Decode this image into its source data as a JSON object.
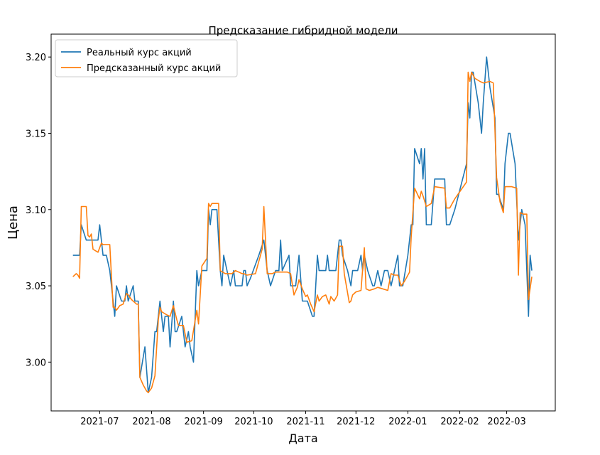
{
  "chart_data": {
    "type": "line",
    "title": "Предсказание гибридной модели",
    "x_label": "Дата",
    "y_label": "Цена",
    "xlim": [
      -29,
      272
    ],
    "ylim": [
      2.968,
      3.215
    ],
    "xticks": [
      {
        "value": 0,
        "label": "2021-07"
      },
      {
        "value": 31,
        "label": "2021-08"
      },
      {
        "value": 62,
        "label": "2021-09"
      },
      {
        "value": 92,
        "label": "2021-10"
      },
      {
        "value": 123,
        "label": "2021-11"
      },
      {
        "value": 153,
        "label": "2021-12"
      },
      {
        "value": 184,
        "label": "2022-01"
      },
      {
        "value": 215,
        "label": "2022-02"
      },
      {
        "value": 243,
        "label": "2022-03"
      }
    ],
    "yticks": [
      {
        "value": 3.0,
        "label": "3.00"
      },
      3.05,
      {
        "value": 3.1,
        "label": "3.10"
      },
      3.15,
      {
        "value": 3.2,
        "label": "3.20"
      }
    ],
    "legend": "upper left",
    "series": [
      {
        "name": "Реальный курс акций",
        "color": "#1f77b4",
        "x": [
          -16,
          -12,
          -11,
          -8,
          -5,
          -1,
          0,
          2,
          4,
          6,
          8,
          9,
          10,
          13,
          15,
          16,
          17,
          20,
          21,
          23,
          24,
          27,
          29,
          31,
          33,
          34,
          36,
          38,
          39,
          41,
          42,
          44,
          45,
          46,
          49,
          50,
          51,
          53,
          54,
          56,
          58,
          59,
          61,
          64,
          65,
          66,
          67,
          70,
          72,
          73,
          74,
          76,
          78,
          80,
          81,
          85,
          86,
          87,
          88,
          90,
          95,
          98,
          100,
          102,
          105,
          107,
          108,
          109,
          113,
          114,
          117,
          119,
          121,
          124,
          127,
          128,
          130,
          131,
          135,
          136,
          137,
          141,
          143,
          144,
          145,
          148,
          150,
          151,
          154,
          156,
          157,
          158,
          160,
          163,
          164,
          166,
          168,
          170,
          172,
          174,
          176,
          178,
          179,
          181,
          184,
          186,
          187,
          188,
          191,
          192,
          193,
          194,
          195,
          198,
          200,
          206,
          207,
          209,
          212,
          219,
          220,
          221,
          222,
          223,
          226,
          228,
          229,
          231,
          233,
          236,
          237,
          238,
          241,
          242,
          244,
          245,
          248,
          250,
          252,
          254,
          256,
          257,
          258
        ],
        "values": [
          3.07,
          3.07,
          3.09,
          3.08,
          3.08,
          3.08,
          3.09,
          3.07,
          3.07,
          3.06,
          3.04,
          3.03,
          3.05,
          3.04,
          3.04,
          3.05,
          3.04,
          3.05,
          3.04,
          3.04,
          2.99,
          3.01,
          2.98,
          2.99,
          3.02,
          3.02,
          3.04,
          3.02,
          3.03,
          3.03,
          3.01,
          3.04,
          3.02,
          3.02,
          3.03,
          3.02,
          3.01,
          3.02,
          3.01,
          3.0,
          3.06,
          3.05,
          3.06,
          3.06,
          3.1,
          3.09,
          3.1,
          3.1,
          3.06,
          3.05,
          3.07,
          3.06,
          3.05,
          3.06,
          3.05,
          3.05,
          3.06,
          3.06,
          3.05,
          3.055,
          3.07,
          3.08,
          3.06,
          3.05,
          3.06,
          3.06,
          3.08,
          3.06,
          3.07,
          3.05,
          3.05,
          3.07,
          3.04,
          3.04,
          3.03,
          3.03,
          3.07,
          3.06,
          3.06,
          3.07,
          3.06,
          3.06,
          3.08,
          3.08,
          3.07,
          3.06,
          3.05,
          3.06,
          3.06,
          3.07,
          3.06,
          3.07,
          3.06,
          3.05,
          3.05,
          3.06,
          3.05,
          3.06,
          3.06,
          3.05,
          3.06,
          3.07,
          3.05,
          3.05,
          3.07,
          3.09,
          3.09,
          3.14,
          3.13,
          3.14,
          3.12,
          3.14,
          3.09,
          3.09,
          3.12,
          3.12,
          3.09,
          3.09,
          3.1,
          3.13,
          3.17,
          3.16,
          3.19,
          3.19,
          3.17,
          3.15,
          3.17,
          3.2,
          3.18,
          3.16,
          3.11,
          3.11,
          3.1,
          3.13,
          3.15,
          3.15,
          3.13,
          3.08,
          3.1,
          3.09,
          3.03,
          3.07,
          3.06
        ]
      },
      {
        "name": "Предсказанный курс акций",
        "color": "#ff7f0e",
        "x": [
          -16,
          -14,
          -13,
          -12,
          -11,
          -8,
          -7,
          -6,
          -5,
          -4,
          -1,
          1,
          2,
          4,
          6,
          8,
          9,
          10,
          12,
          14,
          16,
          17,
          19,
          22,
          23,
          24,
          26,
          28,
          29,
          31,
          33,
          35,
          36,
          37,
          40,
          42,
          44,
          46,
          47,
          50,
          52,
          55,
          58,
          59,
          61,
          64,
          65,
          66,
          67,
          71,
          72,
          75,
          78,
          79,
          81,
          83,
          85,
          86,
          88,
          93,
          97,
          98,
          100,
          103,
          105,
          107,
          109,
          112,
          114,
          116,
          118,
          119,
          121,
          123,
          124,
          126,
          128,
          130,
          131,
          133,
          135,
          137,
          138,
          140,
          142,
          143,
          145,
          146,
          149,
          150,
          151,
          153,
          156,
          158,
          159,
          161,
          164,
          166,
          169,
          172,
          174,
          176,
          178,
          180,
          182,
          185,
          186,
          188,
          191,
          192,
          193,
          195,
          198,
          200,
          206,
          207,
          209,
          212,
          219,
          220,
          221,
          222,
          224,
          227,
          229,
          233,
          235,
          237,
          239,
          241,
          242,
          246,
          249,
          250,
          251,
          253,
          255,
          256,
          258
        ],
        "values": [
          3.056,
          3.058,
          3.057,
          3.055,
          3.102,
          3.102,
          3.083,
          3.082,
          3.084,
          3.074,
          3.072,
          3.078,
          3.077,
          3.077,
          3.077,
          3.036,
          3.036,
          3.034,
          3.037,
          3.038,
          3.045,
          3.044,
          3.041,
          3.038,
          3.038,
          2.99,
          2.985,
          2.981,
          2.98,
          2.983,
          2.991,
          3.028,
          3.036,
          3.033,
          3.031,
          3.03,
          3.037,
          3.028,
          3.024,
          3.024,
          3.013,
          3.014,
          3.034,
          3.025,
          3.063,
          3.068,
          3.104,
          3.102,
          3.104,
          3.104,
          3.06,
          3.058,
          3.058,
          3.058,
          3.06,
          3.059,
          3.058,
          3.058,
          3.057,
          3.058,
          3.074,
          3.102,
          3.058,
          3.058,
          3.059,
          3.059,
          3.059,
          3.059,
          3.058,
          3.044,
          3.049,
          3.054,
          3.048,
          3.043,
          3.044,
          3.038,
          3.033,
          3.044,
          3.04,
          3.043,
          3.044,
          3.038,
          3.043,
          3.04,
          3.044,
          3.076,
          3.076,
          3.058,
          3.039,
          3.04,
          3.044,
          3.046,
          3.047,
          3.075,
          3.048,
          3.047,
          3.048,
          3.049,
          3.048,
          3.047,
          3.058,
          3.057,
          3.057,
          3.05,
          3.053,
          3.059,
          3.082,
          3.114,
          3.107,
          3.112,
          3.109,
          3.102,
          3.104,
          3.115,
          3.114,
          3.101,
          3.101,
          3.107,
          3.118,
          3.19,
          3.184,
          3.19,
          3.186,
          3.184,
          3.183,
          3.184,
          3.183,
          3.121,
          3.105,
          3.098,
          3.115,
          3.115,
          3.114,
          3.057,
          3.098,
          3.097,
          3.097,
          3.041,
          3.056
        ]
      }
    ]
  }
}
